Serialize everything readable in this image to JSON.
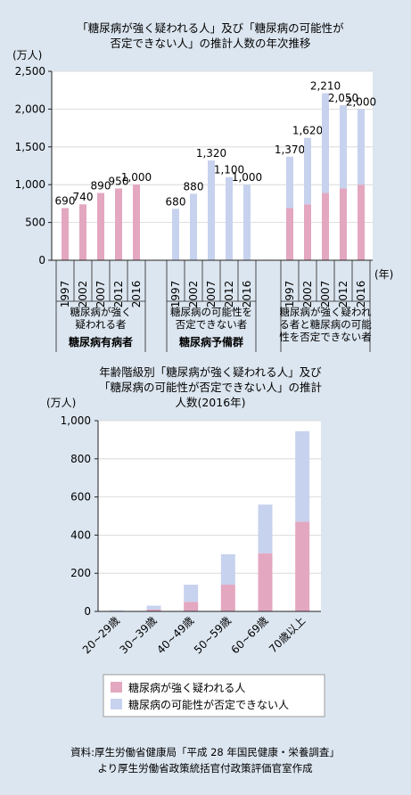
{
  "colors": {
    "page_bg": "#dce6f0",
    "plot_bg": "#ffffff",
    "diabetes": "#e3a7c0",
    "possible": "#c7d2ee",
    "axis": "#222222",
    "grid": "#d4d4d4"
  },
  "chart_data": [
    {
      "type": "bar",
      "title_lines": [
        "「糖尿病が強く疑われる人」及び「糖尿病の可能性が",
        "否定できない人」の推計人数の年次推移"
      ],
      "ylabel": "(万人)",
      "xunit": "(年)",
      "ylim": [
        0,
        2500
      ],
      "yticks": [
        "0",
        "500",
        "1,000",
        "1,500",
        "2,000",
        "2,500"
      ],
      "ytick_values": [
        0,
        500,
        1000,
        1500,
        2000,
        2500
      ],
      "grid": true,
      "groups": [
        {
          "name_lines": [
            "糖尿病が強く",
            "疑われる者"
          ],
          "bold_label": "糖尿病有病者",
          "years": [
            "1997",
            "2002",
            "2007",
            "2012",
            "2016"
          ],
          "bars": [
            {
              "strong": 690,
              "possible": 0,
              "label": "690"
            },
            {
              "strong": 740,
              "possible": 0,
              "label": "740"
            },
            {
              "strong": 890,
              "possible": 0,
              "label": "890"
            },
            {
              "strong": 950,
              "possible": 0,
              "label": "950"
            },
            {
              "strong": 1000,
              "possible": 0,
              "label": "1,000"
            }
          ]
        },
        {
          "name_lines": [
            "糖尿病の可能性を",
            "否定できない者"
          ],
          "bold_label": "糖尿病予備群",
          "years": [
            "1997",
            "2002",
            "2007",
            "2012",
            "2016"
          ],
          "bars": [
            {
              "strong": 0,
              "possible": 680,
              "label": "680"
            },
            {
              "strong": 0,
              "possible": 880,
              "label": "880"
            },
            {
              "strong": 0,
              "possible": 1320,
              "label": "1,320"
            },
            {
              "strong": 0,
              "possible": 1100,
              "label": "1,100"
            },
            {
              "strong": 0,
              "possible": 1000,
              "label": "1,000"
            }
          ]
        },
        {
          "name_lines": [
            "糖尿病が強く疑われ",
            "る者と糖尿病の可能",
            "性を否定できない者"
          ],
          "bold_label": "",
          "years": [
            "1997",
            "2002",
            "2007",
            "2012",
            "2016"
          ],
          "bars": [
            {
              "strong": 690,
              "possible": 680,
              "label": "1,370"
            },
            {
              "strong": 740,
              "possible": 880,
              "label": "1,620"
            },
            {
              "strong": 890,
              "possible": 1320,
              "label": "2,210"
            },
            {
              "strong": 950,
              "possible": 1100,
              "label": "2,050"
            },
            {
              "strong": 1000,
              "possible": 1000,
              "label": "2,000"
            }
          ]
        }
      ]
    },
    {
      "type": "bar",
      "stacked": true,
      "title_lines": [
        "年齢階級別「糖尿病が強く疑われる人」及び",
        "「糖尿病の可能性が否定できない人」の推計",
        "人数(2016年)"
      ],
      "ylabel": "(万人)",
      "ylim": [
        0,
        1000
      ],
      "yticks": [
        "0",
        "200",
        "400",
        "600",
        "800",
        "1,000"
      ],
      "ytick_values": [
        0,
        200,
        400,
        600,
        800,
        1000
      ],
      "grid": true,
      "categories": [
        "20~29歳",
        "30~39歳",
        "40~49歳",
        "50~59歳",
        "60~69歳",
        "70歳以上"
      ],
      "series": [
        {
          "name": "糖尿病が強く疑われる人",
          "values": [
            2,
            10,
            50,
            140,
            305,
            470
          ]
        },
        {
          "name": "糖尿病の可能性が否定できない人",
          "values": [
            3,
            20,
            90,
            160,
            255,
            475
          ]
        }
      ],
      "legend": "bottom"
    }
  ],
  "source_lines": [
    "資料:厚生労働省健康局「平成 28 年国民健康・栄養調査」",
    "より厚生労働省政策統括官付政策評価官室作成"
  ]
}
